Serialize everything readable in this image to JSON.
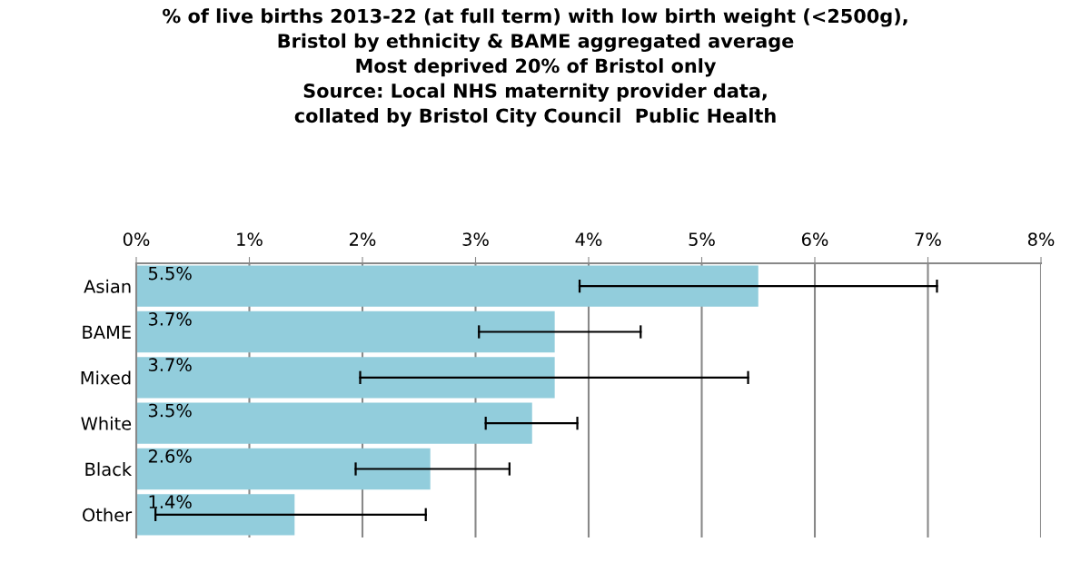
{
  "chart_data": {
    "type": "bar",
    "orientation": "horizontal",
    "title": "% of live births 2013-22 (at full term) with low birth weight (<2500g),\nBristol by ethnicity & BAME aggregated average\nMost deprived 20% of Bristol only\nSource: Local NHS maternity provider data,\ncollated by Bristol City Council  Public Health",
    "categories": [
      "Asian",
      "BAME",
      "Mixed",
      "White",
      "Black",
      "Other"
    ],
    "values": [
      5.5,
      3.7,
      3.7,
      3.5,
      2.6,
      1.4
    ],
    "value_labels": [
      "5.5%",
      "3.7%",
      "3.7%",
      "3.5%",
      "2.6%",
      "1.4%"
    ],
    "errors": [
      [
        3.92,
        7.08
      ],
      [
        3.03,
        4.46
      ],
      [
        1.98,
        5.41
      ],
      [
        3.09,
        3.9
      ],
      [
        1.94,
        3.3
      ],
      [
        0.17,
        2.56
      ]
    ],
    "color": "#92cddc",
    "xlim": [
      0,
      8
    ],
    "xticks": [
      {
        "value": 0,
        "label": "0%"
      },
      {
        "value": 1,
        "label": "1%"
      },
      {
        "value": 2,
        "label": "2%"
      },
      {
        "value": 3,
        "label": "3%"
      },
      {
        "value": 4,
        "label": "4%"
      },
      {
        "value": 5,
        "label": "5%"
      },
      {
        "value": 6,
        "label": "6%"
      },
      {
        "value": 7,
        "label": "7%"
      },
      {
        "value": 8,
        "label": "8%"
      }
    ],
    "grid": "x"
  }
}
